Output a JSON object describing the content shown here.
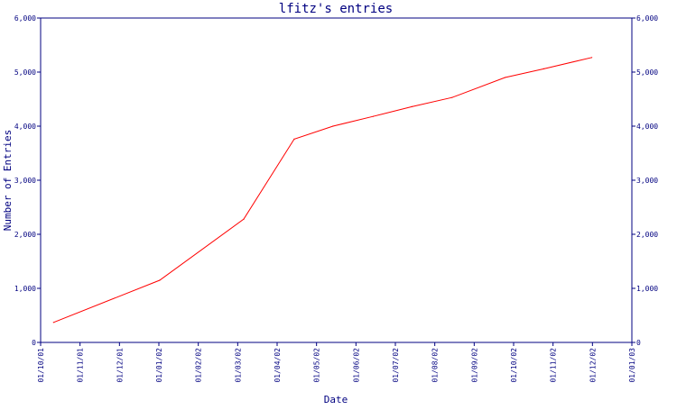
{
  "chart_data": {
    "type": "line",
    "title": "lfitz's entries",
    "xlabel": "Date",
    "ylabel": "Number of Entries",
    "x_ticks": [
      "01/10/01",
      "01/11/01",
      "01/12/01",
      "01/01/02",
      "01/02/02",
      "01/03/02",
      "01/04/02",
      "01/05/02",
      "01/06/02",
      "01/07/02",
      "01/08/02",
      "01/09/02",
      "01/10/02",
      "01/11/02",
      "01/12/02",
      "01/01/03"
    ],
    "y_ticks": [
      "0",
      "1,000",
      "2,000",
      "3,000",
      "4,000",
      "5,000",
      "6,000"
    ],
    "ylim": [
      0,
      6000
    ],
    "xlim": [
      "2001-10-01",
      "2003-01-01"
    ],
    "grid": false,
    "right_axis": true,
    "colors": {
      "axis": "#000080",
      "line": "#ff0000",
      "background": "#ffffff"
    },
    "series": [
      {
        "x": [
          "2001-10-11",
          "2002-01-01",
          "2002-03-07",
          "2002-04-15",
          "2002-05-15",
          "2002-06-15",
          "2002-07-15",
          "2002-08-15",
          "2002-09-25",
          "2002-10-25",
          "2002-12-01"
        ],
        "values": [
          370,
          1150,
          2280,
          3760,
          4000,
          4180,
          4360,
          4530,
          4900,
          5060,
          5270
        ]
      }
    ]
  }
}
